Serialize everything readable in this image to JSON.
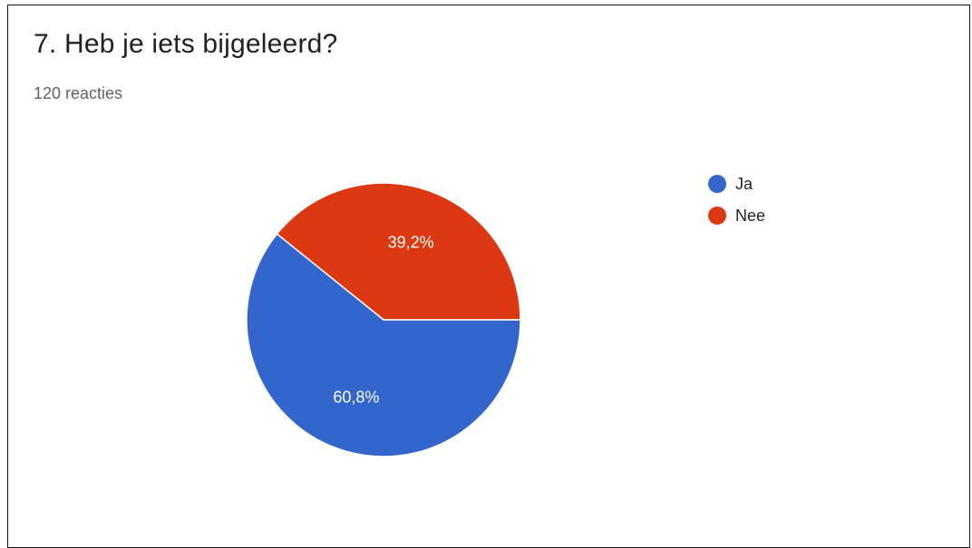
{
  "header": {
    "title": "7. Heb je iets bijgeleerd?",
    "subtitle": "120 reacties"
  },
  "chart_data": {
    "type": "pie",
    "title": "7. Heb je iets bijgeleerd?",
    "subtitle": "120 reacties",
    "categories": [
      "Ja",
      "Nee"
    ],
    "values": [
      60.8,
      39.2
    ],
    "labels": [
      "60,8%",
      "39,2%"
    ],
    "colors": [
      "#3366cc",
      "#dc3912"
    ],
    "legend_position": "right"
  }
}
